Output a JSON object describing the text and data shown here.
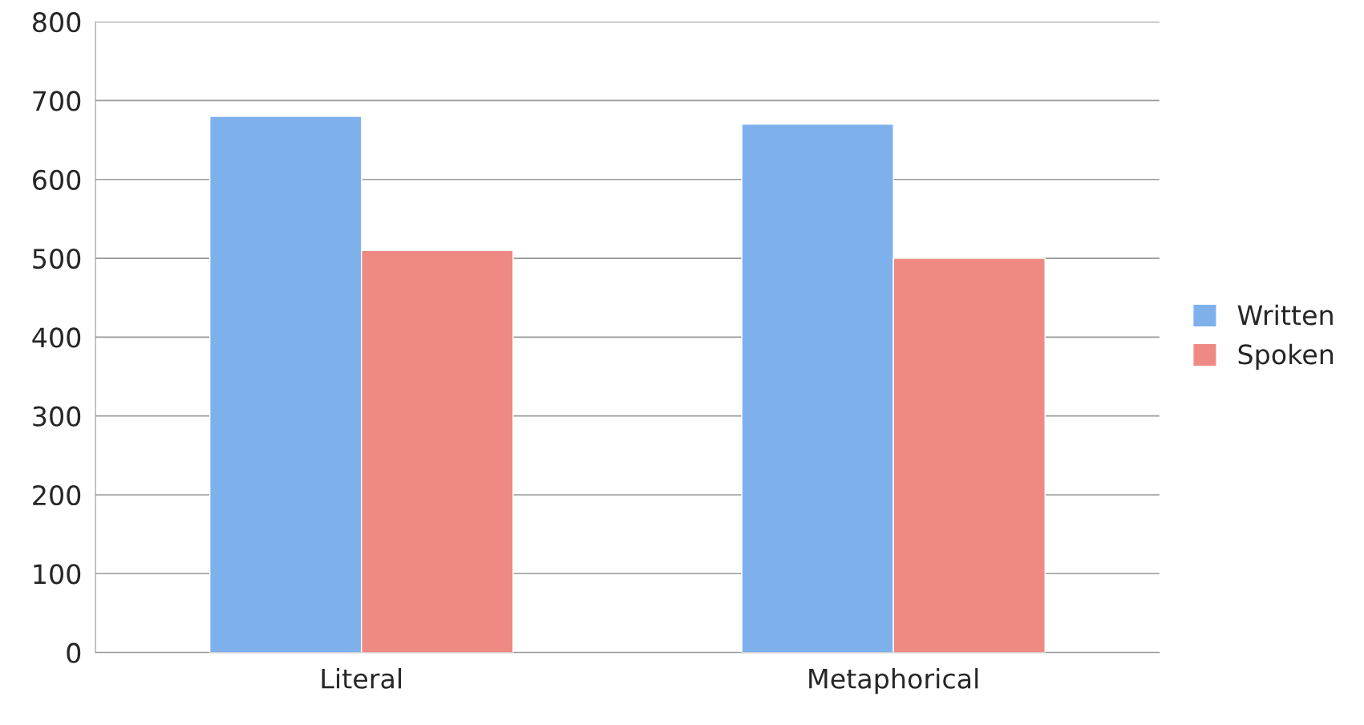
{
  "chart_data": {
    "type": "bar",
    "categories": [
      "Literal",
      "Metaphorical"
    ],
    "series": [
      {
        "name": "Written",
        "color": "#7eb0ec",
        "values": [
          680,
          670
        ]
      },
      {
        "name": "Spoken",
        "color": "#ee8a83",
        "values": [
          510,
          500
        ]
      }
    ],
    "ylim": [
      0,
      800
    ],
    "yticks": [
      0,
      100,
      200,
      300,
      400,
      500,
      600,
      700,
      800
    ],
    "grid": "y",
    "legend": "right"
  }
}
